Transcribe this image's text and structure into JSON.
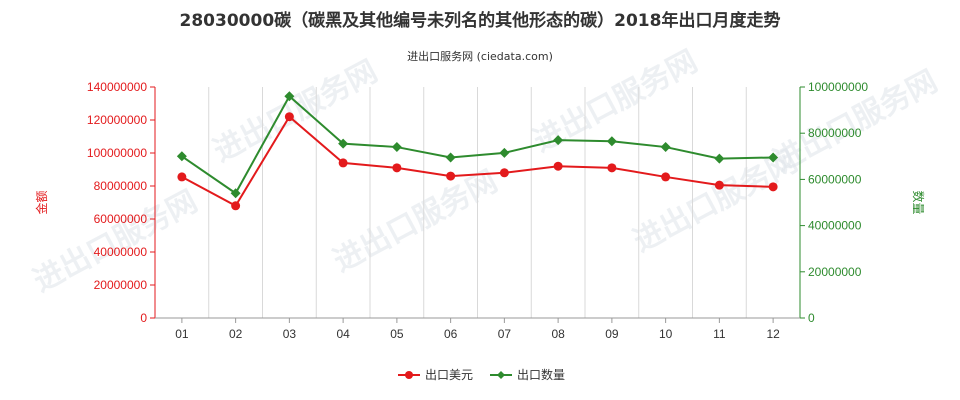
{
  "chart_data": {
    "type": "line",
    "title": "28030000碳（碳黑及其他编号未列名的其他形态的碳）2018年出口月度走势",
    "subtitle": "进出口服务网 (ciedata.com)",
    "categories": [
      "01",
      "02",
      "03",
      "04",
      "05",
      "06",
      "07",
      "08",
      "09",
      "10",
      "11",
      "12"
    ],
    "y_left": {
      "label": "金额",
      "range": [
        0,
        140000000
      ],
      "ticks": [
        "0",
        "20000000",
        "40000000",
        "60000000",
        "80000000",
        "100000000",
        "120000000",
        "140000000"
      ],
      "color": "#e31a1c"
    },
    "y_right": {
      "label": "数量",
      "range": [
        0,
        100000000
      ],
      "ticks": [
        "0",
        "20000000",
        "40000000",
        "60000000",
        "80000000",
        "100000000"
      ],
      "color": "#2e8b2e"
    },
    "series": [
      {
        "name": "出口美元",
        "axis": "left",
        "color": "#e31a1c",
        "marker": "circle",
        "values": [
          85500000,
          68000000,
          122000000,
          94000000,
          91000000,
          86000000,
          88000000,
          92000000,
          91000000,
          85500000,
          80500000,
          79500000
        ]
      },
      {
        "name": "出口数量",
        "axis": "right",
        "color": "#2e8b2e",
        "marker": "diamond",
        "values": [
          70000000,
          54000000,
          96000000,
          75500000,
          74000000,
          69500000,
          71500000,
          77000000,
          76500000,
          74000000,
          69000000,
          69500000
        ]
      }
    ],
    "grid": "vertical",
    "legend_position": "bottom-center",
    "watermark": "进出口服务网"
  }
}
